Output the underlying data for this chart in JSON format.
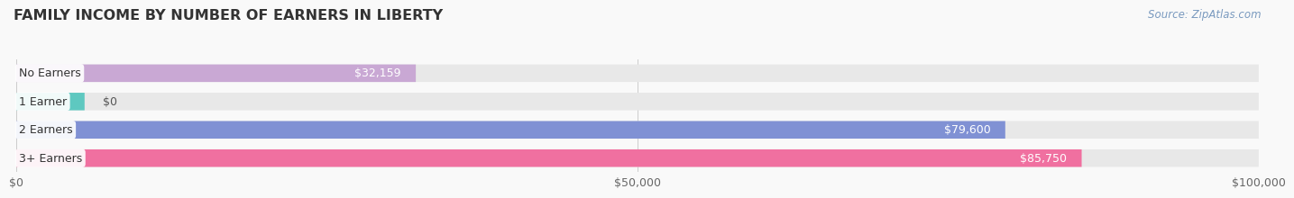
{
  "title": "FAMILY INCOME BY NUMBER OF EARNERS IN LIBERTY",
  "source": "Source: ZipAtlas.com",
  "categories": [
    "No Earners",
    "1 Earner",
    "2 Earners",
    "3+ Earners"
  ],
  "values": [
    32159,
    0,
    79600,
    85750
  ],
  "bar_colors": [
    "#c9a8d4",
    "#5ec8c0",
    "#8091d4",
    "#f070a0"
  ],
  "bar_bg_color": "#e8e8e8",
  "value_labels": [
    "$32,159",
    "$0",
    "$79,600",
    "$85,750"
  ],
  "xlim": [
    0,
    100000
  ],
  "xticks": [
    0,
    50000,
    100000
  ],
  "xtick_labels": [
    "$0",
    "$50,000",
    "$100,000"
  ],
  "background_color": "#f9f9f9",
  "title_fontsize": 11.5,
  "label_fontsize": 9,
  "source_fontsize": 8.5,
  "bar_height": 0.62,
  "title_color": "#333333",
  "label_color": "#666666",
  "value_color_inside": "#ffffff",
  "value_color_outside": "#555555",
  "source_color": "#7a9abf",
  "grid_color": "#cccccc"
}
